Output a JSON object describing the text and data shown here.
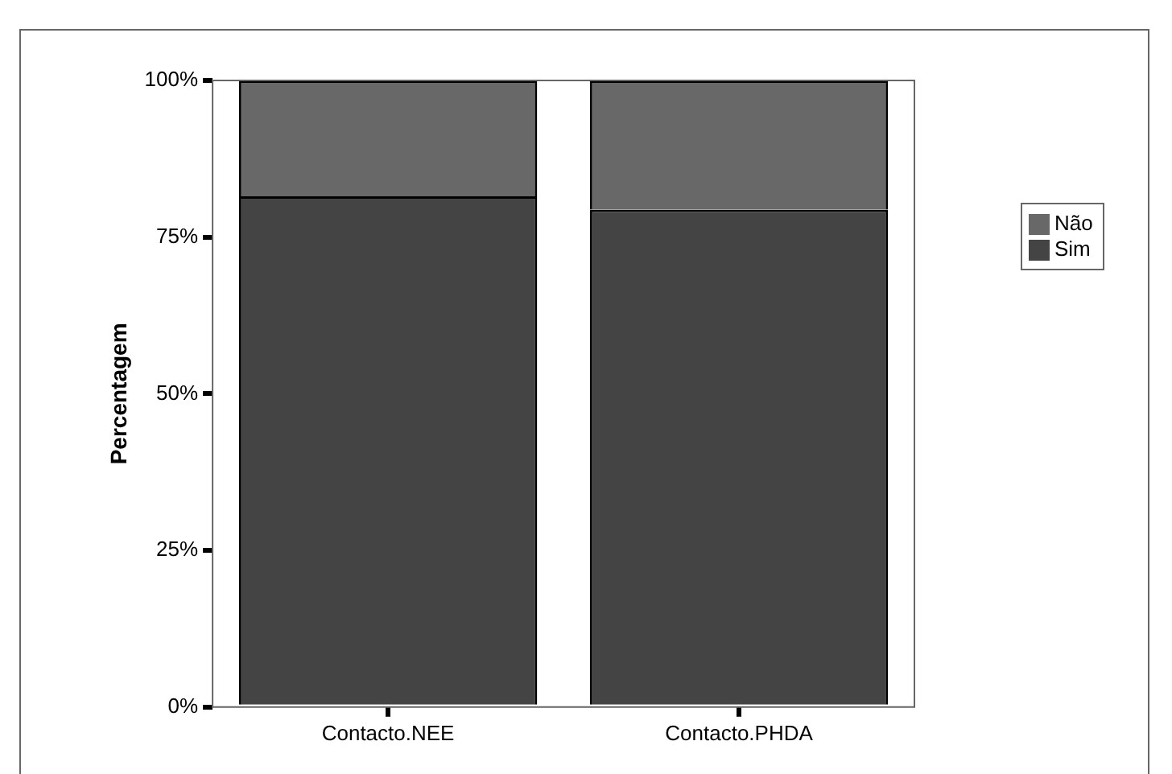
{
  "chart_data": {
    "type": "bar",
    "stacked": true,
    "ylabel": "Percentagem",
    "categories": [
      "Contacto.NEE",
      "Contacto.PHDA"
    ],
    "series": [
      {
        "name": "Sim",
        "color": "#444444",
        "values": [
          81.5,
          79.4
        ]
      },
      {
        "name": "Não",
        "color": "#686868",
        "values": [
          18.5,
          20.6
        ]
      }
    ],
    "ylim": [
      0,
      100
    ],
    "yticks": [
      {
        "value": 0,
        "label": "0%"
      },
      {
        "value": 25,
        "label": "25%"
      },
      {
        "value": 50,
        "label": "50%"
      },
      {
        "value": 75,
        "label": "75%"
      },
      {
        "value": 100,
        "label": "100%"
      }
    ],
    "grid": false,
    "legend": "top right"
  }
}
